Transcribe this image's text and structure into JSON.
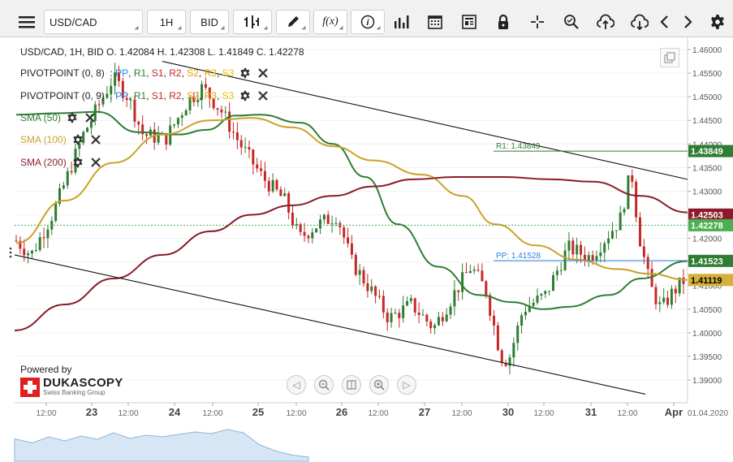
{
  "toolbar": {
    "instrument": "USD/CAD",
    "timeframe": "1H",
    "side": "BID",
    "buttons": [
      "menu-icon",
      "bar-style-icon",
      "pencil-icon",
      "function-icon",
      "info-icon",
      "volume-bars-icon",
      "calendar-icon",
      "news-icon",
      "lock-icon",
      "crosshair-icon",
      "zoom-icon",
      "upload-icon",
      "download-icon",
      "scroll-left-icon",
      "scroll-right-icon",
      "settings-icon"
    ]
  },
  "ohlc": {
    "text": "USD/CAD, 1H, BID   O. 1.42084 H. 1.42308 L. 1.41849 C. 1.42278"
  },
  "indicators": [
    {
      "name": "PIVOTPOINT (0, 8)",
      "parts": [
        "PP",
        "R1",
        "S1",
        "R2",
        "S2",
        "R3",
        "S3"
      ]
    },
    {
      "name": "PIVOTPOINT (0, 9)",
      "parts": [
        "PP",
        "R1",
        "S1",
        "R2",
        "S2",
        "R3",
        "S3"
      ]
    },
    {
      "name": "SMA (50)",
      "color": "#2e7d32"
    },
    {
      "name": "SMA (100)",
      "color": "#c9a227"
    },
    {
      "name": "SMA (200)",
      "color": "#8b1a2b"
    }
  ],
  "colors": {
    "pp": "#2a7de1",
    "r1": "#2e7d32",
    "s1": "#c62828",
    "r2": "#c62828",
    "s2": "#e6a100",
    "r3": "#e6a100",
    "s3": "#e6c200",
    "sma50": "#2e7d32",
    "sma100": "#c9a227",
    "sma200": "#8b1a2b",
    "up": "#2e7d32",
    "down": "#c62828"
  },
  "chart_data": {
    "type": "candlestick",
    "price_range": [
      1.387,
      1.461
    ],
    "y_ticks": [
      "1.46000",
      "1.45500",
      "1.45000",
      "1.44500",
      "1.44000",
      "1.43500",
      "1.43000",
      "1.42500",
      "1.42000",
      "1.41500",
      "1.41000",
      "1.40500",
      "1.40000",
      "1.39500",
      "1.39000"
    ],
    "y_tick_values": [
      1.46,
      1.455,
      1.45,
      1.445,
      1.44,
      1.435,
      1.43,
      1.425,
      1.42,
      1.415,
      1.41,
      1.405,
      1.4,
      1.395,
      1.39
    ],
    "x_labels": [
      "12:00",
      "23",
      "12:00",
      "24",
      "12:00",
      "25",
      "12:00",
      "26",
      "12:00",
      "27",
      "12:00",
      "30",
      "12:00",
      "31",
      "12:00",
      "Apr",
      "01.04.2020"
    ],
    "x_label_bold": [
      false,
      true,
      false,
      true,
      false,
      true,
      false,
      true,
      false,
      true,
      false,
      true,
      false,
      true,
      false,
      true,
      false
    ],
    "price_badges": [
      {
        "label": "1.43849",
        "value": 1.43849,
        "color": "#2e7d32",
        "text_color": "#ffffff"
      },
      {
        "label": "1.42503",
        "value": 1.42503,
        "color": "#8b1a2b",
        "text_color": "#ffffff"
      },
      {
        "label": "1.42278",
        "value": 1.42278,
        "color": "#4caf50",
        "text_color": "#ffffff"
      },
      {
        "label": "1.41523",
        "value": 1.41523,
        "color": "#2e7d32",
        "text_color": "#ffffff"
      },
      {
        "label": "1.41119",
        "value": 1.41119,
        "color": "#d4b13a",
        "text_color": "#000000"
      }
    ],
    "pivot_lines": [
      {
        "label": "R1: 1.43849",
        "value": 1.43849,
        "color": "#2e7d32"
      },
      {
        "label": "PP: 1.41528",
        "value": 1.41528,
        "color": "#2a7de1"
      }
    ],
    "last_close": 1.42278
  },
  "branding": {
    "powered_by": "Powered by",
    "brand": "DUKASCOPY",
    "tagline": "Swiss Banking Group"
  },
  "nav": [
    "left-arrow-icon",
    "zoom-out-icon",
    "reset-icon",
    "zoom-in-icon",
    "right-arrow-icon"
  ]
}
